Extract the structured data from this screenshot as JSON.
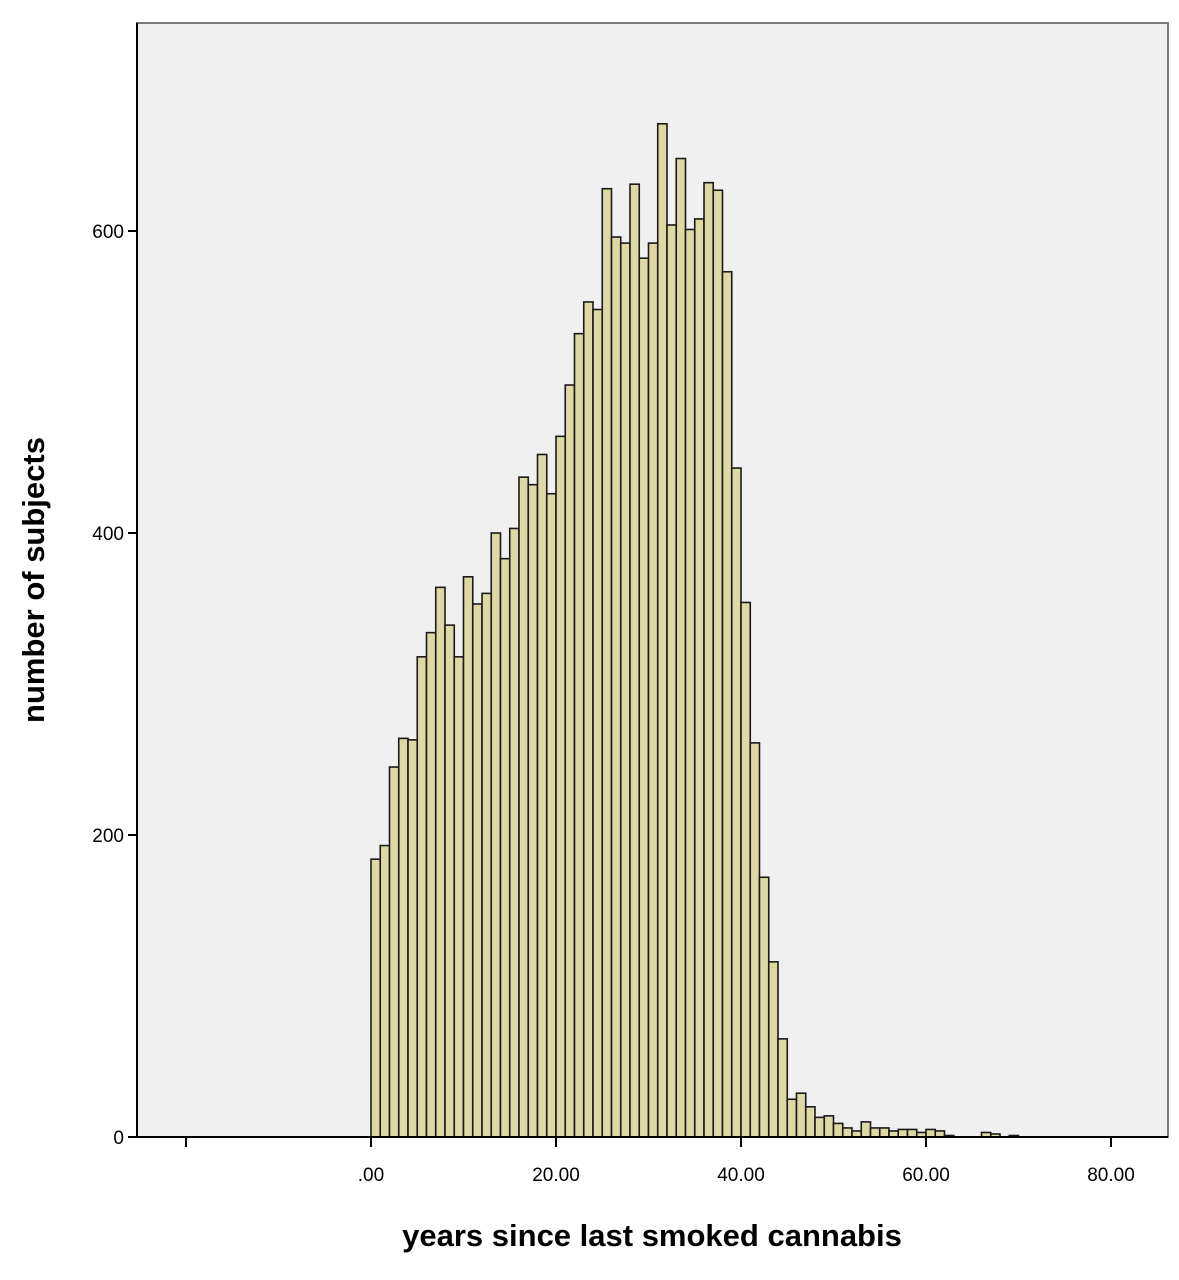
{
  "chart_data": {
    "type": "bar",
    "subtype": "histogram",
    "title": "",
    "xlabel": "years since last smoked cannabis",
    "ylabel": "number of subjects",
    "xlim": [
      -20,
      85
    ],
    "ylim": [
      0,
      670
    ],
    "x_ticks": [
      0,
      20,
      40,
      60,
      80
    ],
    "x_tick_labels": [
      ".00",
      "20.00",
      "40.00",
      "60.00",
      "80.00"
    ],
    "y_ticks": [
      0,
      200,
      400,
      600
    ],
    "y_tick_labels": [
      "0",
      "200",
      "400",
      "600"
    ],
    "grid": false,
    "legend": "none",
    "bin_width": 1,
    "bin_start": 0,
    "counts": [
      184,
      193,
      245,
      264,
      263,
      318,
      334,
      364,
      339,
      318,
      371,
      353,
      360,
      400,
      383,
      403,
      437,
      432,
      452,
      426,
      464,
      498,
      532,
      553,
      548,
      628,
      596,
      592,
      631,
      582,
      592,
      671,
      604,
      648,
      601,
      608,
      632,
      627,
      573,
      443,
      354,
      261,
      172,
      116,
      65,
      25,
      29,
      20,
      13,
      14,
      9,
      6,
      4,
      10,
      6,
      6,
      4,
      5,
      5,
      3,
      5,
      4,
      1,
      0,
      0,
      0,
      3,
      2,
      0,
      1
    ],
    "colors": {
      "bar_fill": "#ded9a4",
      "bar_stroke": "#1a1a1a",
      "plot_background": "#f0f0f0",
      "axis": "#000000",
      "frame": "#7a7a7a"
    }
  }
}
